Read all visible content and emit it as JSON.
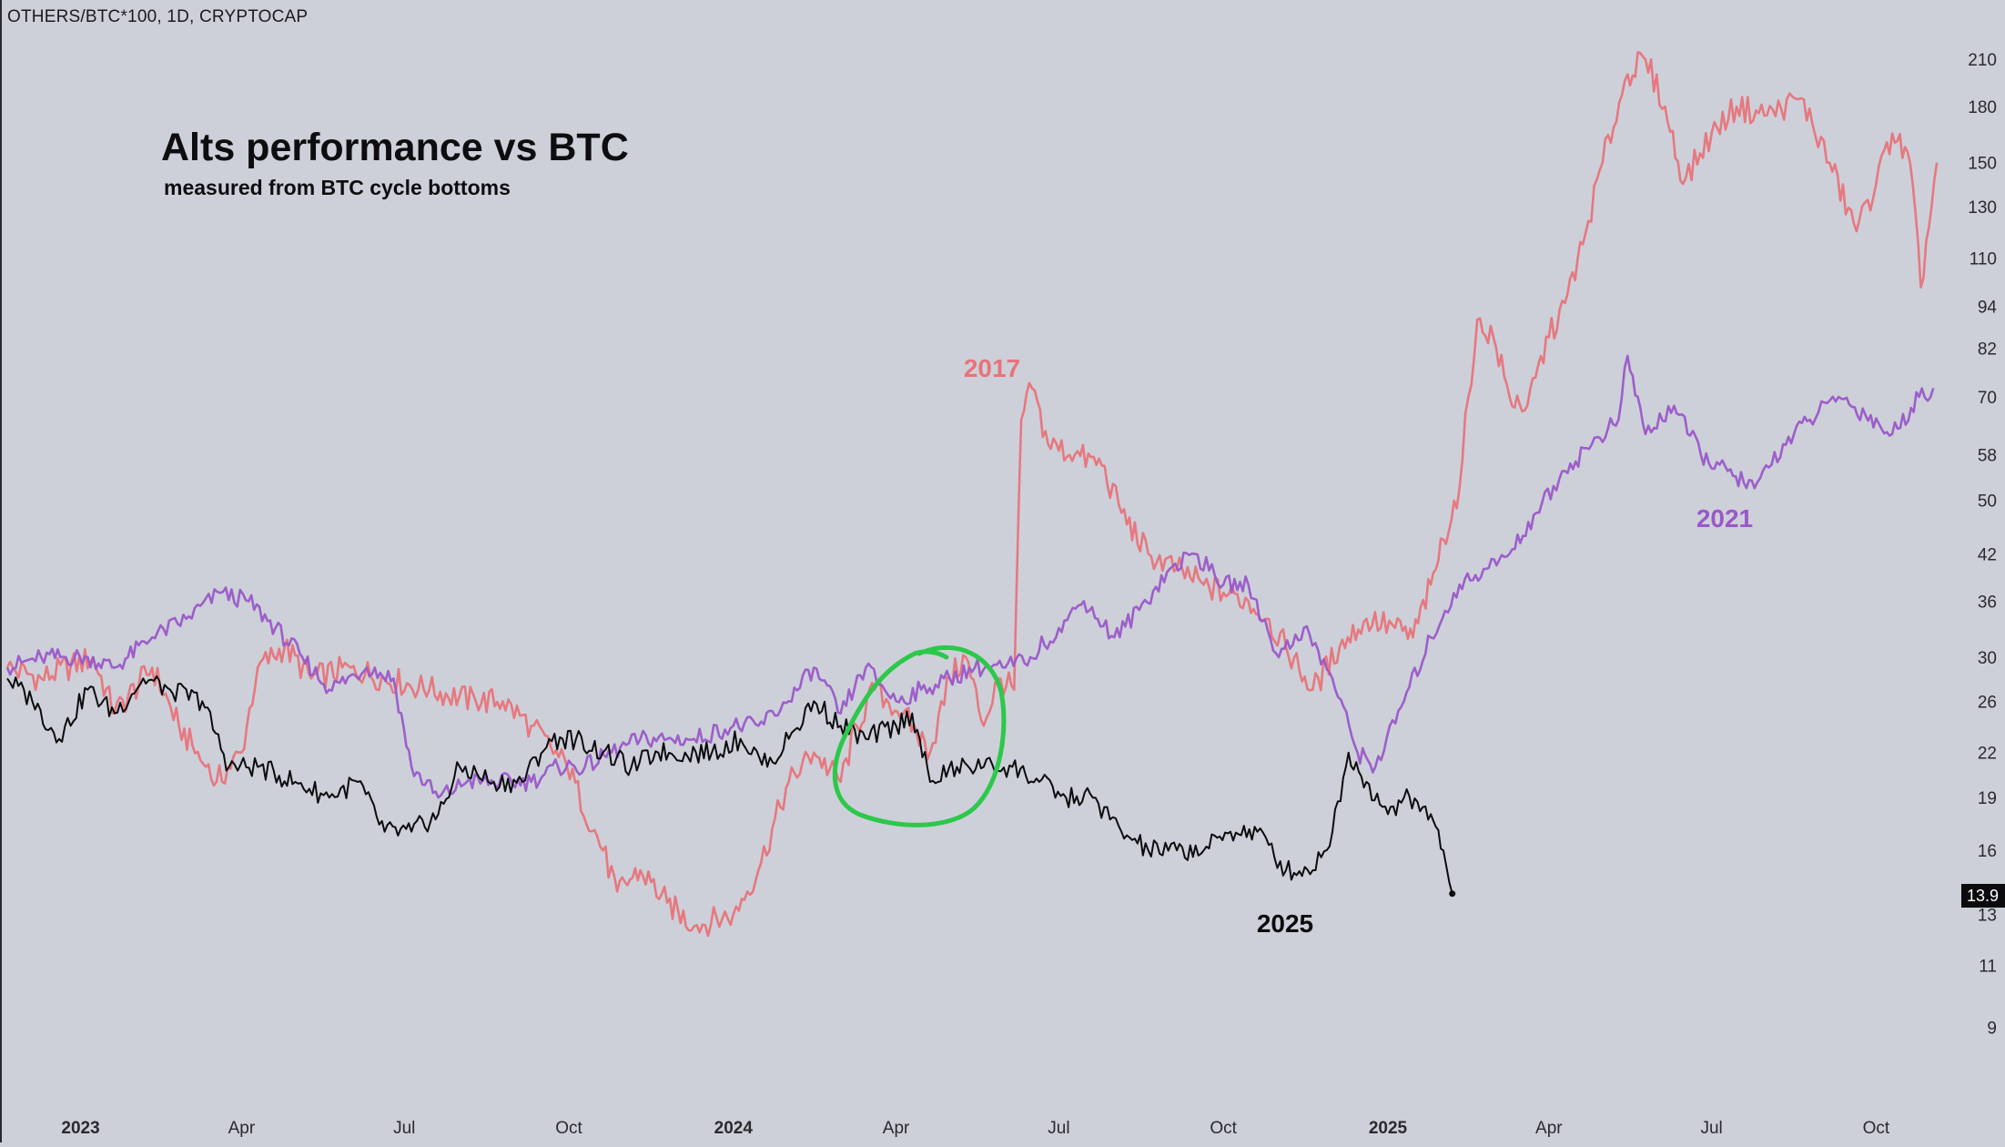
{
  "header": {
    "symbol": "OTHERS/BTC*100, 1D, CRYPTOCAP",
    "title": "Alts performance vs BTC",
    "subtitle": "measured from BTC cycle bottoms"
  },
  "current_value_badge": "13.9",
  "colors": {
    "background": "#cdd0d9",
    "series_2017": "#e8737a",
    "series_2021": "#9a58c9",
    "series_2025": "#0b0b0d",
    "highlight_circle": "#2cc84a"
  },
  "icons": {
    "highlight": "hand-drawn-green-circle"
  },
  "chart_data": {
    "type": "line",
    "y_scale": "log",
    "ylim": [
      7.5,
      240
    ],
    "x_start": "2022-11-21",
    "x_end": "2025-11-10",
    "x_ticks": [
      {
        "date": "2023-01-01",
        "label": "2023",
        "bold": true
      },
      {
        "date": "2023-04-01",
        "label": "Apr"
      },
      {
        "date": "2023-07-01",
        "label": "Jul"
      },
      {
        "date": "2023-10-01",
        "label": "Oct"
      },
      {
        "date": "2024-01-01",
        "label": "2024",
        "bold": true
      },
      {
        "date": "2024-04-01",
        "label": "Apr"
      },
      {
        "date": "2024-07-01",
        "label": "Jul"
      },
      {
        "date": "2024-10-01",
        "label": "Oct"
      },
      {
        "date": "2025-01-01",
        "label": "2025",
        "bold": true
      },
      {
        "date": "2025-04-01",
        "label": "Apr"
      },
      {
        "date": "2025-07-01",
        "label": "Jul"
      },
      {
        "date": "2025-10-01",
        "label": "Oct"
      }
    ],
    "y_ticks": [
      9,
      11,
      13,
      16,
      19,
      22,
      26,
      30,
      36,
      42,
      50,
      58,
      70,
      82,
      94,
      110,
      130,
      150,
      180,
      210
    ],
    "series": [
      {
        "name": "2017",
        "color": "#e8737a",
        "points": [
          [
            "2022-11-21",
            29
          ],
          [
            "2022-12-10",
            28
          ],
          [
            "2023-01-08",
            30
          ],
          [
            "2023-01-20",
            25
          ],
          [
            "2023-02-10",
            29
          ],
          [
            "2023-02-25",
            24
          ],
          [
            "2023-03-12",
            21
          ],
          [
            "2023-03-18",
            20
          ],
          [
            "2023-04-01",
            22
          ],
          [
            "2023-04-10",
            29
          ],
          [
            "2023-04-25",
            31
          ],
          [
            "2023-05-10",
            28
          ],
          [
            "2023-06-01",
            29
          ],
          [
            "2023-06-20",
            28
          ],
          [
            "2023-07-15",
            27
          ],
          [
            "2023-08-10",
            26
          ],
          [
            "2023-08-25",
            26
          ],
          [
            "2023-09-10",
            24
          ],
          [
            "2023-09-30",
            21
          ],
          [
            "2023-10-20",
            16
          ],
          [
            "2023-10-28",
            14
          ],
          [
            "2023-11-10",
            15
          ],
          [
            "2023-11-25",
            13.5
          ],
          [
            "2023-12-10",
            12.5
          ],
          [
            "2024-01-01",
            13
          ],
          [
            "2024-01-15",
            15
          ],
          [
            "2024-02-01",
            20
          ],
          [
            "2024-02-15",
            22
          ],
          [
            "2024-03-01",
            20
          ],
          [
            "2024-03-10",
            24
          ],
          [
            "2024-03-20",
            27
          ],
          [
            "2024-04-05",
            25
          ],
          [
            "2024-04-20",
            22
          ],
          [
            "2024-05-01",
            28
          ],
          [
            "2024-05-10",
            30
          ],
          [
            "2024-05-20",
            24
          ],
          [
            "2024-05-28",
            28
          ],
          [
            "2024-06-06",
            27
          ],
          [
            "2024-06-10",
            65
          ],
          [
            "2024-06-16",
            72
          ],
          [
            "2024-06-25",
            60
          ],
          [
            "2024-07-10",
            58
          ],
          [
            "2024-07-25",
            56
          ],
          [
            "2024-08-05",
            48
          ],
          [
            "2024-08-20",
            42
          ],
          [
            "2024-09-05",
            40
          ],
          [
            "2024-09-20",
            38
          ],
          [
            "2024-10-01",
            37
          ],
          [
            "2024-10-15",
            36
          ],
          [
            "2024-10-25",
            34
          ],
          [
            "2024-11-05",
            31
          ],
          [
            "2024-11-20",
            27
          ],
          [
            "2024-12-05",
            31
          ],
          [
            "2024-12-20",
            34
          ],
          [
            "2025-01-05",
            33
          ],
          [
            "2025-01-15",
            32
          ],
          [
            "2025-01-25",
            38
          ],
          [
            "2025-02-01",
            44
          ],
          [
            "2025-02-10",
            52
          ],
          [
            "2025-02-15",
            70
          ],
          [
            "2025-02-20",
            90
          ],
          [
            "2025-03-01",
            85
          ],
          [
            "2025-03-10",
            70
          ],
          [
            "2025-03-20",
            68
          ],
          [
            "2025-04-01",
            85
          ],
          [
            "2025-04-10",
            95
          ],
          [
            "2025-04-20",
            115
          ],
          [
            "2025-05-01",
            150
          ],
          [
            "2025-05-15",
            200
          ],
          [
            "2025-05-25",
            210
          ],
          [
            "2025-06-05",
            180
          ],
          [
            "2025-06-15",
            140
          ],
          [
            "2025-07-01",
            165
          ],
          [
            "2025-07-15",
            180
          ],
          [
            "2025-08-01",
            175
          ],
          [
            "2025-08-20",
            185
          ],
          [
            "2025-09-05",
            150
          ],
          [
            "2025-09-20",
            120
          ],
          [
            "2025-10-01",
            140
          ],
          [
            "2025-10-10",
            165
          ],
          [
            "2025-10-20",
            150
          ],
          [
            "2025-10-26",
            100
          ],
          [
            "2025-11-04",
            150
          ]
        ]
      },
      {
        "name": "2021",
        "color": "#9a58c9",
        "points": [
          [
            "2022-11-21",
            29
          ],
          [
            "2022-12-10",
            30
          ],
          [
            "2023-01-05",
            30
          ],
          [
            "2023-01-20",
            29
          ],
          [
            "2023-02-10",
            32
          ],
          [
            "2023-03-01",
            34
          ],
          [
            "2023-03-20",
            37
          ],
          [
            "2023-04-05",
            36
          ],
          [
            "2023-04-20",
            33
          ],
          [
            "2023-05-05",
            30
          ],
          [
            "2023-05-20",
            27
          ],
          [
            "2023-06-10",
            29
          ],
          [
            "2023-06-25",
            28
          ],
          [
            "2023-07-05",
            21
          ],
          [
            "2023-07-20",
            19
          ],
          [
            "2023-08-05",
            20
          ],
          [
            "2023-08-20",
            20
          ],
          [
            "2023-09-10",
            20
          ],
          [
            "2023-09-25",
            21
          ],
          [
            "2023-10-10",
            21
          ],
          [
            "2023-10-25",
            22
          ],
          [
            "2023-11-10",
            23
          ],
          [
            "2023-11-25",
            23
          ],
          [
            "2023-12-10",
            23
          ],
          [
            "2024-01-01",
            24
          ],
          [
            "2024-01-15",
            24
          ],
          [
            "2024-02-01",
            26
          ],
          [
            "2024-02-15",
            29
          ],
          [
            "2024-03-01",
            25
          ],
          [
            "2024-03-15",
            29
          ],
          [
            "2024-04-01",
            26
          ],
          [
            "2024-04-15",
            27
          ],
          [
            "2024-05-01",
            28
          ],
          [
            "2024-05-15",
            29
          ],
          [
            "2024-06-01",
            29
          ],
          [
            "2024-06-15",
            30
          ],
          [
            "2024-07-01",
            33
          ],
          [
            "2024-07-15",
            36
          ],
          [
            "2024-08-01",
            32
          ],
          [
            "2024-08-15",
            35
          ],
          [
            "2024-09-01",
            40
          ],
          [
            "2024-09-15",
            42
          ],
          [
            "2024-10-01",
            38
          ],
          [
            "2024-10-15",
            38
          ],
          [
            "2024-11-01",
            30
          ],
          [
            "2024-11-15",
            33
          ],
          [
            "2024-12-01",
            28
          ],
          [
            "2024-12-15",
            22
          ],
          [
            "2024-12-25",
            21
          ],
          [
            "2025-01-10",
            26
          ],
          [
            "2025-01-25",
            32
          ],
          [
            "2025-02-10",
            38
          ],
          [
            "2025-02-25",
            40
          ],
          [
            "2025-03-10",
            42
          ],
          [
            "2025-03-25",
            48
          ],
          [
            "2025-04-10",
            55
          ],
          [
            "2025-04-25",
            60
          ],
          [
            "2025-05-10",
            65
          ],
          [
            "2025-05-15",
            80
          ],
          [
            "2025-05-25",
            62
          ],
          [
            "2025-06-10",
            68
          ],
          [
            "2025-06-25",
            58
          ],
          [
            "2025-07-10",
            55
          ],
          [
            "2025-07-25",
            52
          ],
          [
            "2025-08-10",
            60
          ],
          [
            "2025-08-25",
            65
          ],
          [
            "2025-09-10",
            70
          ],
          [
            "2025-09-25",
            66
          ],
          [
            "2025-10-10",
            62
          ],
          [
            "2025-10-25",
            70
          ],
          [
            "2025-11-02",
            72
          ]
        ]
      },
      {
        "name": "2025",
        "color": "#0b0b0d",
        "points": [
          [
            "2022-11-21",
            28
          ],
          [
            "2022-12-05",
            26
          ],
          [
            "2022-12-20",
            23
          ],
          [
            "2023-01-05",
            27
          ],
          [
            "2023-01-20",
            25
          ],
          [
            "2023-02-05",
            28
          ],
          [
            "2023-02-20",
            27
          ],
          [
            "2023-03-10",
            26
          ],
          [
            "2023-03-25",
            21
          ],
          [
            "2023-04-10",
            21
          ],
          [
            "2023-05-01",
            20
          ],
          [
            "2023-05-20",
            19
          ],
          [
            "2023-06-05",
            20
          ],
          [
            "2023-06-20",
            17
          ],
          [
            "2023-07-05",
            17
          ],
          [
            "2023-07-20",
            18
          ],
          [
            "2023-08-01",
            21
          ],
          [
            "2023-08-20",
            20
          ],
          [
            "2023-09-05",
            20
          ],
          [
            "2023-09-20",
            23
          ],
          [
            "2023-10-05",
            23
          ],
          [
            "2023-10-20",
            22
          ],
          [
            "2023-11-05",
            21
          ],
          [
            "2023-11-20",
            22
          ],
          [
            "2023-12-05",
            22
          ],
          [
            "2023-12-20",
            22
          ],
          [
            "2024-01-05",
            23
          ],
          [
            "2024-01-20",
            21
          ],
          [
            "2024-02-01",
            23
          ],
          [
            "2024-02-15",
            26
          ],
          [
            "2024-03-01",
            24
          ],
          [
            "2024-03-15",
            23
          ],
          [
            "2024-04-01",
            24
          ],
          [
            "2024-04-10",
            25
          ],
          [
            "2024-04-20",
            20
          ],
          [
            "2024-05-05",
            21
          ],
          [
            "2024-05-20",
            21
          ],
          [
            "2024-06-05",
            21
          ],
          [
            "2024-06-20",
            20
          ],
          [
            "2024-07-05",
            19
          ],
          [
            "2024-07-20",
            19
          ],
          [
            "2024-08-05",
            17
          ],
          [
            "2024-08-20",
            16
          ],
          [
            "2024-09-05",
            16
          ],
          [
            "2024-09-20",
            16
          ],
          [
            "2024-10-05",
            17
          ],
          [
            "2024-10-20",
            17
          ],
          [
            "2024-11-05",
            15
          ],
          [
            "2024-11-20",
            15
          ],
          [
            "2024-12-01",
            17
          ],
          [
            "2024-12-10",
            22
          ],
          [
            "2024-12-20",
            20
          ],
          [
            "2025-01-01",
            18
          ],
          [
            "2025-01-10",
            19
          ],
          [
            "2025-01-25",
            18
          ],
          [
            "2025-02-01",
            16
          ],
          [
            "2025-02-06",
            13.9
          ]
        ]
      }
    ],
    "annotations": [
      {
        "text": "2017",
        "series": "2017"
      },
      {
        "text": "2021",
        "series": "2021"
      },
      {
        "text": "2025",
        "series": "2025"
      }
    ]
  }
}
